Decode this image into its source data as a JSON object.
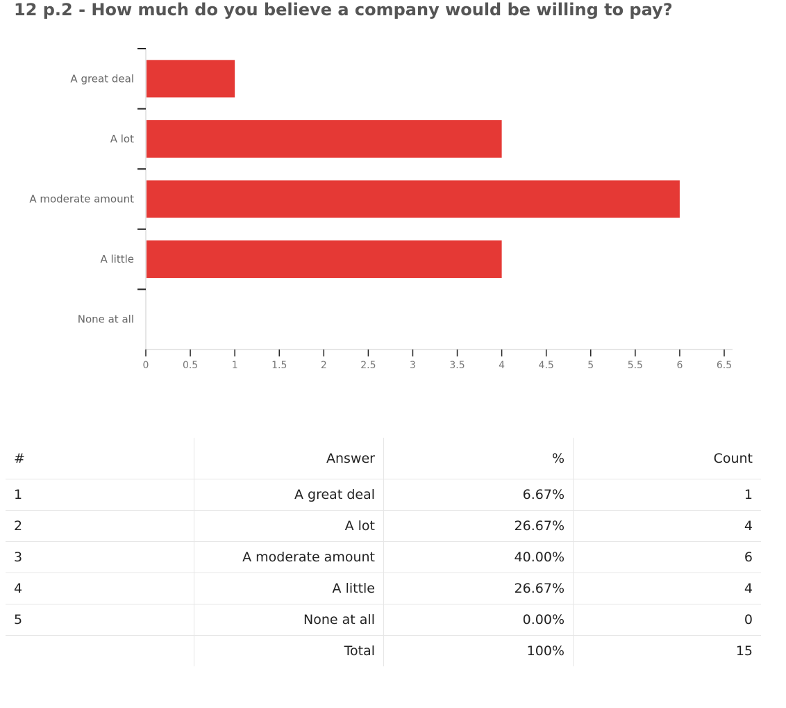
{
  "title": "12 p.2 - How much do you believe a company would be willing to pay?",
  "colors": {
    "bar": "#e53935",
    "axis": "#cccccc",
    "tick_label": "#777777",
    "category_label": "#666666"
  },
  "chart_data": {
    "type": "bar",
    "orientation": "horizontal",
    "title": "",
    "xlabel": "",
    "ylabel": "",
    "categories": [
      "A great deal",
      "A lot",
      "A moderate amount",
      "A little",
      "None at all"
    ],
    "values": [
      1,
      4,
      6,
      4,
      0
    ],
    "xlim": [
      0,
      6.5
    ],
    "xticks": [
      "0",
      "0.5",
      "1",
      "1.5",
      "2",
      "2.5",
      "3",
      "3.5",
      "4",
      "4.5",
      "5",
      "5.5",
      "6",
      "6.5"
    ],
    "grid": false,
    "legend": "none"
  },
  "table": {
    "headers": {
      "num": "#",
      "answer": "Answer",
      "percent": "%",
      "count": "Count"
    },
    "rows": [
      {
        "num": "1",
        "answer": "A great deal",
        "percent": "6.67%",
        "count": "1"
      },
      {
        "num": "2",
        "answer": "A lot",
        "percent": "26.67%",
        "count": "4"
      },
      {
        "num": "3",
        "answer": "A moderate amount",
        "percent": "40.00%",
        "count": "6"
      },
      {
        "num": "4",
        "answer": "A little",
        "percent": "26.67%",
        "count": "4"
      },
      {
        "num": "5",
        "answer": "None at all",
        "percent": "0.00%",
        "count": "0"
      }
    ],
    "total": {
      "num": "",
      "answer": "Total",
      "percent": "100%",
      "count": "15"
    }
  }
}
